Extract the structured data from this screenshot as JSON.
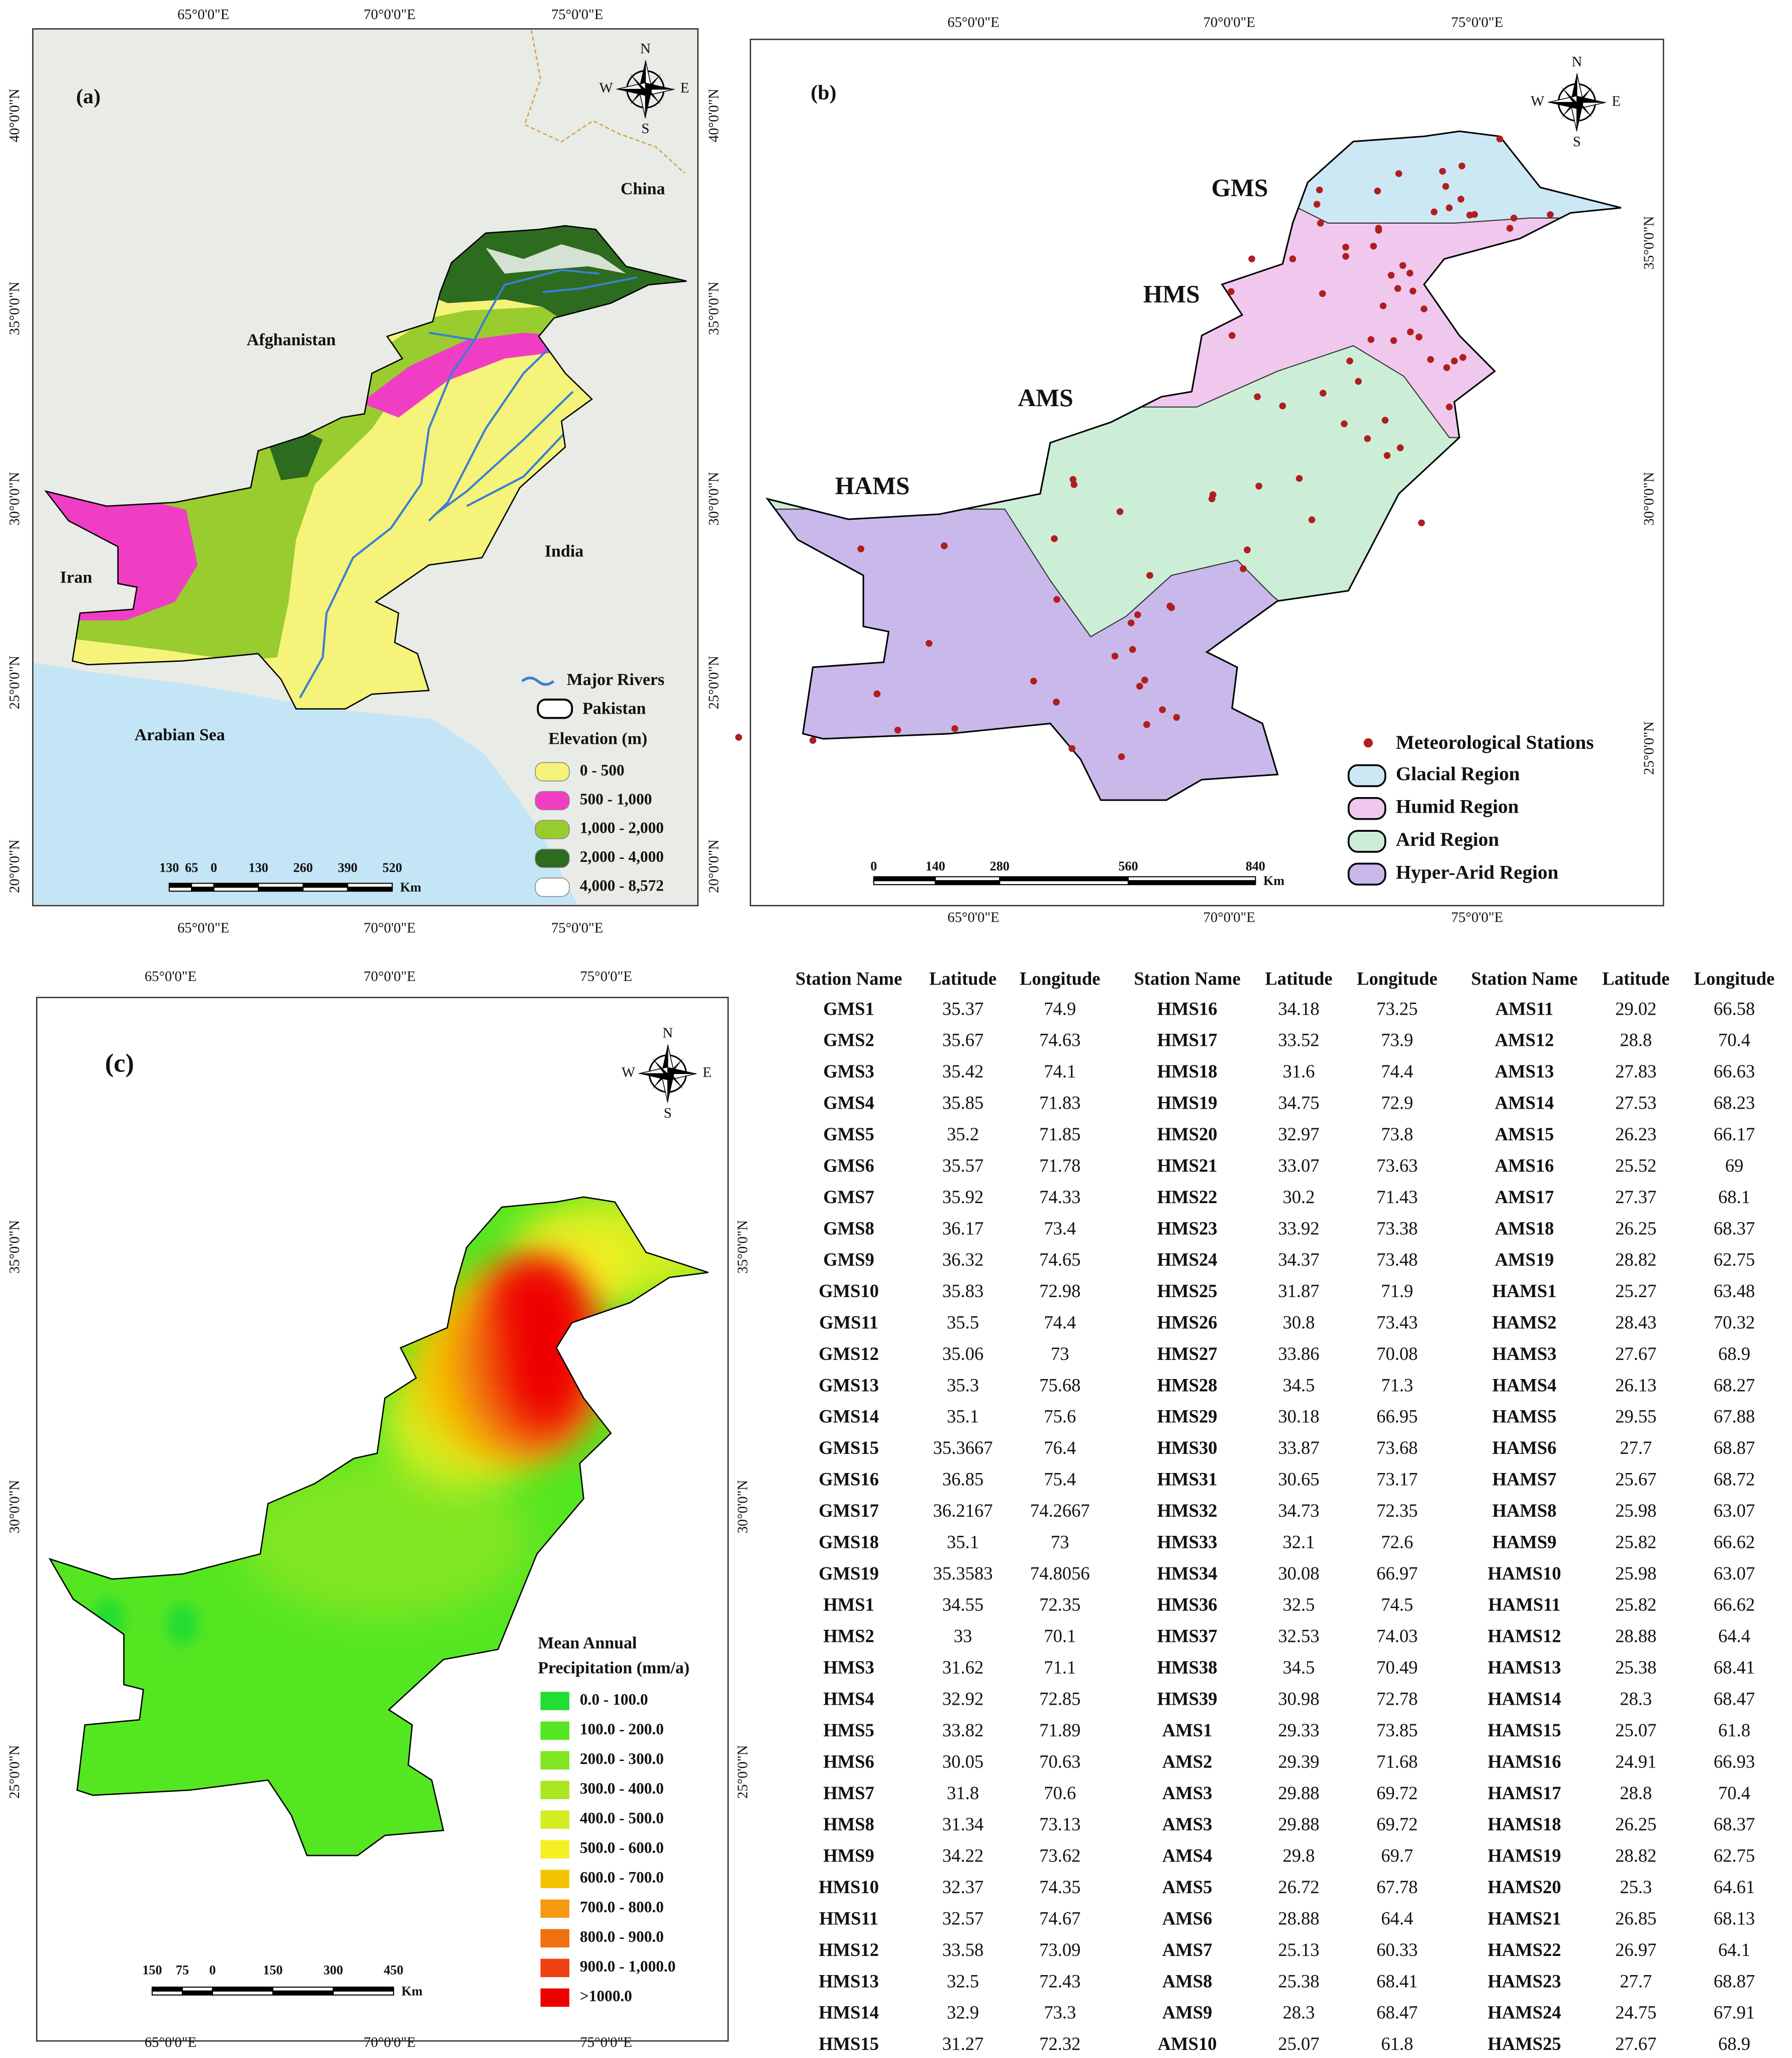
{
  "map_a": {
    "label": "(a)",
    "places": [
      "China",
      "Afghanistan",
      "Iran",
      "India",
      "Arabian Sea"
    ],
    "lon_labels": [
      "65°0'0\"E",
      "70°0'0\"E",
      "75°0'0\"E"
    ],
    "lat_labels": [
      "40°0'0\"N",
      "35°0'0\"N",
      "30°0'0\"N",
      "25°0'0\"N",
      "20°0'0\"N"
    ],
    "compass": [
      "N",
      "E",
      "S",
      "W"
    ],
    "legend": {
      "rivers": "Major Rivers",
      "boundary": "Pakistan",
      "title": "Elevation (m)",
      "river_color": "#3a7fd0",
      "items": [
        {
          "label": "0 - 500",
          "color": "#f5f37a"
        },
        {
          "label": "500 - 1,000",
          "color": "#f03ec4"
        },
        {
          "label": "1,000 - 2,000",
          "color": "#99cc2e"
        },
        {
          "label": "2,000 - 4,000",
          "color": "#2d6b1f"
        },
        {
          "label": "4,000 - 8,572",
          "color": "#ffffff"
        }
      ]
    },
    "scale": {
      "ticks": [
        "130",
        "65",
        "0",
        "130",
        "260",
        "390",
        "520"
      ],
      "unit": "Km"
    }
  },
  "map_b": {
    "label": "(b)",
    "lon_labels": [
      "65°0'0\"E",
      "70°0'0\"E",
      "75°0'0\"E"
    ],
    "lat_labels": [
      "35°0'0\"N",
      "30°0'0\"N",
      "25°0'0\"N"
    ],
    "compass": [
      "N",
      "E",
      "S",
      "W"
    ],
    "stations": "Meteorological Stations",
    "station_color": "#b01e1e",
    "regions": [
      {
        "code": "GMS",
        "name": "Glacial Region",
        "color": "#cde8f5"
      },
      {
        "code": "HMS",
        "name": "Humid Region",
        "color": "#f0c8ee"
      },
      {
        "code": "AMS",
        "name": "Arid Region",
        "color": "#cdeed6"
      },
      {
        "code": "HAMS",
        "name": "Hyper-Arid Region",
        "color": "#c9b9ea"
      }
    ],
    "scale": {
      "ticks": [
        "0",
        "140",
        "280",
        "560",
        "840"
      ],
      "unit": "Km"
    }
  },
  "map_c": {
    "label": "(c)",
    "lon_labels": [
      "65°0'0\"E",
      "70°0'0\"E",
      "75°0'0\"E"
    ],
    "lat_labels": [
      "35°0'0\"N",
      "30°0'0\"N",
      "25°0'0\"N"
    ],
    "compass": [
      "N",
      "E",
      "S",
      "W"
    ],
    "legend": {
      "title": [
        "Mean Annual",
        "Precipitation (mm/a)"
      ],
      "items": [
        {
          "label": "0.0 - 100.0",
          "color": "#22dd33"
        },
        {
          "label": "100.0 - 200.0",
          "color": "#55e622"
        },
        {
          "label": "200.0 - 300.0",
          "color": "#80e622"
        },
        {
          "label": "300.0 - 400.0",
          "color": "#aae622"
        },
        {
          "label": "400.0 - 500.0",
          "color": "#d4ee22"
        },
        {
          "label": "500.0 - 600.0",
          "color": "#f5f022"
        },
        {
          "label": "600.0 - 700.0",
          "color": "#f5c400"
        },
        {
          "label": "700.0 - 800.0",
          "color": "#f59a10"
        },
        {
          "label": "800.0 - 900.0",
          "color": "#f07010"
        },
        {
          "label": "900.0 - 1,000.0",
          "color": "#f04010"
        },
        {
          "label": ">1000.0",
          "color": "#ee0000"
        }
      ]
    },
    "scale": {
      "ticks": [
        "150",
        "75",
        "0",
        "150",
        "300",
        "450"
      ],
      "unit": "Km"
    }
  },
  "table": {
    "header": [
      "Station Name",
      "Latitude",
      "Longitude",
      "Station Name",
      "Latitude",
      "Longitude",
      "Station Name",
      "Latitude",
      "Longitude"
    ],
    "rows": [
      [
        "GMS1",
        35.37,
        74.9,
        "HMS16",
        34.18,
        73.25,
        "AMS11",
        29.02,
        66.58
      ],
      [
        "GMS2",
        35.67,
        74.63,
        "HMS17",
        33.52,
        73.9,
        "AMS12",
        28.8,
        70.4
      ],
      [
        "GMS3",
        35.42,
        74.1,
        "HMS18",
        31.6,
        74.4,
        "AMS13",
        27.83,
        66.63
      ],
      [
        "GMS4",
        35.85,
        71.83,
        "HMS19",
        34.75,
        72.9,
        "AMS14",
        27.53,
        68.23
      ],
      [
        "GMS5",
        35.2,
        71.85,
        "HMS20",
        32.97,
        73.8,
        "AMS15",
        26.23,
        66.17
      ],
      [
        "GMS6",
        35.57,
        71.78,
        "HMS21",
        33.07,
        73.63,
        "AMS16",
        25.52,
        69
      ],
      [
        "GMS7",
        35.92,
        74.33,
        "HMS22",
        30.2,
        71.43,
        "AMS17",
        27.37,
        68.1
      ],
      [
        "GMS8",
        36.17,
        73.4,
        "HMS23",
        33.92,
        73.38,
        "AMS18",
        26.25,
        68.37
      ],
      [
        "GMS9",
        36.32,
        74.65,
        "HMS24",
        34.37,
        73.48,
        "AMS19",
        28.82,
        62.75
      ],
      [
        "GMS10",
        35.83,
        72.98,
        "HMS25",
        31.87,
        71.9,
        "HAMS1",
        25.27,
        63.48
      ],
      [
        "GMS11",
        35.5,
        74.4,
        "HMS26",
        30.8,
        73.43,
        "HAMS2",
        28.43,
        70.32
      ],
      [
        "GMS12",
        35.06,
        73,
        "HMS27",
        33.86,
        70.08,
        "HAMS3",
        27.67,
        68.9
      ],
      [
        "GMS13",
        35.3,
        75.68,
        "HMS28",
        34.5,
        71.3,
        "HAMS4",
        26.13,
        68.27
      ],
      [
        "GMS14",
        35.1,
        75.6,
        "HMS29",
        30.18,
        66.95,
        "HAMS5",
        29.55,
        67.88
      ],
      [
        "GMS15",
        35.3667,
        76.4,
        "HMS30",
        33.87,
        73.68,
        "HAMS6",
        27.7,
        68.87
      ],
      [
        "GMS16",
        36.85,
        75.4,
        "HMS31",
        30.65,
        73.17,
        "HAMS7",
        25.67,
        68.72
      ],
      [
        "GMS17",
        36.2167,
        74.2667,
        "HMS32",
        34.73,
        72.35,
        "HAMS8",
        25.98,
        63.07
      ],
      [
        "GMS18",
        35.1,
        73,
        "HMS33",
        32.1,
        72.6,
        "HAMS9",
        25.82,
        66.62
      ],
      [
        "GMS19",
        35.3583,
        74.8056,
        "HMS34",
        30.08,
        66.97,
        "HAMS10",
        25.98,
        63.07
      ],
      [
        "HMS1",
        34.55,
        72.35,
        "HMS36",
        32.5,
        74.5,
        "HAMS11",
        25.82,
        66.62
      ],
      [
        "HMS2",
        33,
        70.1,
        "HMS37",
        32.53,
        74.03,
        "HAMS12",
        28.88,
        64.4
      ],
      [
        "HMS3",
        31.62,
        71.1,
        "HMS38",
        34.5,
        70.49,
        "HAMS13",
        25.38,
        68.41
      ],
      [
        "HMS4",
        32.92,
        72.85,
        "HMS39",
        30.98,
        72.78,
        "HAMS14",
        28.3,
        68.47
      ],
      [
        "HMS5",
        33.82,
        71.89,
        "AMS1",
        29.33,
        73.85,
        "HAMS15",
        25.07,
        61.8
      ],
      [
        "HMS6",
        30.05,
        70.63,
        "AMS2",
        29.39,
        71.68,
        "HAMS16",
        24.91,
        66.93
      ],
      [
        "HMS7",
        31.8,
        70.6,
        "AMS3",
        29.88,
        69.72,
        "HAMS17",
        28.8,
        70.4
      ],
      [
        "HMS8",
        31.34,
        73.13,
        "AMS3",
        29.88,
        69.72,
        "HAMS18",
        26.25,
        68.37
      ],
      [
        "HMS9",
        34.22,
        73.62,
        "AMS4",
        29.8,
        69.7,
        "HAMS19",
        28.82,
        62.75
      ],
      [
        "HMS10",
        32.37,
        74.35,
        "AMS5",
        26.72,
        67.78,
        "HAMS20",
        25.3,
        64.61
      ],
      [
        "HMS11",
        32.57,
        74.67,
        "AMS6",
        28.88,
        64.4,
        "HAMS21",
        26.85,
        68.13
      ],
      [
        "HMS12",
        33.58,
        73.09,
        "AMS7",
        25.13,
        60.33,
        "HAMS22",
        26.97,
        64.1
      ],
      [
        "HMS13",
        32.5,
        72.43,
        "AMS8",
        25.38,
        68.41,
        "HAMS23",
        27.7,
        68.87
      ],
      [
        "HMS14",
        32.9,
        73.3,
        "AMS9",
        28.3,
        68.47,
        "HAMS24",
        24.75,
        67.91
      ],
      [
        "HMS15",
        31.27,
        72.32,
        "AMS10",
        25.07,
        61.8,
        "HAMS25",
        27.67,
        68.9
      ]
    ]
  }
}
